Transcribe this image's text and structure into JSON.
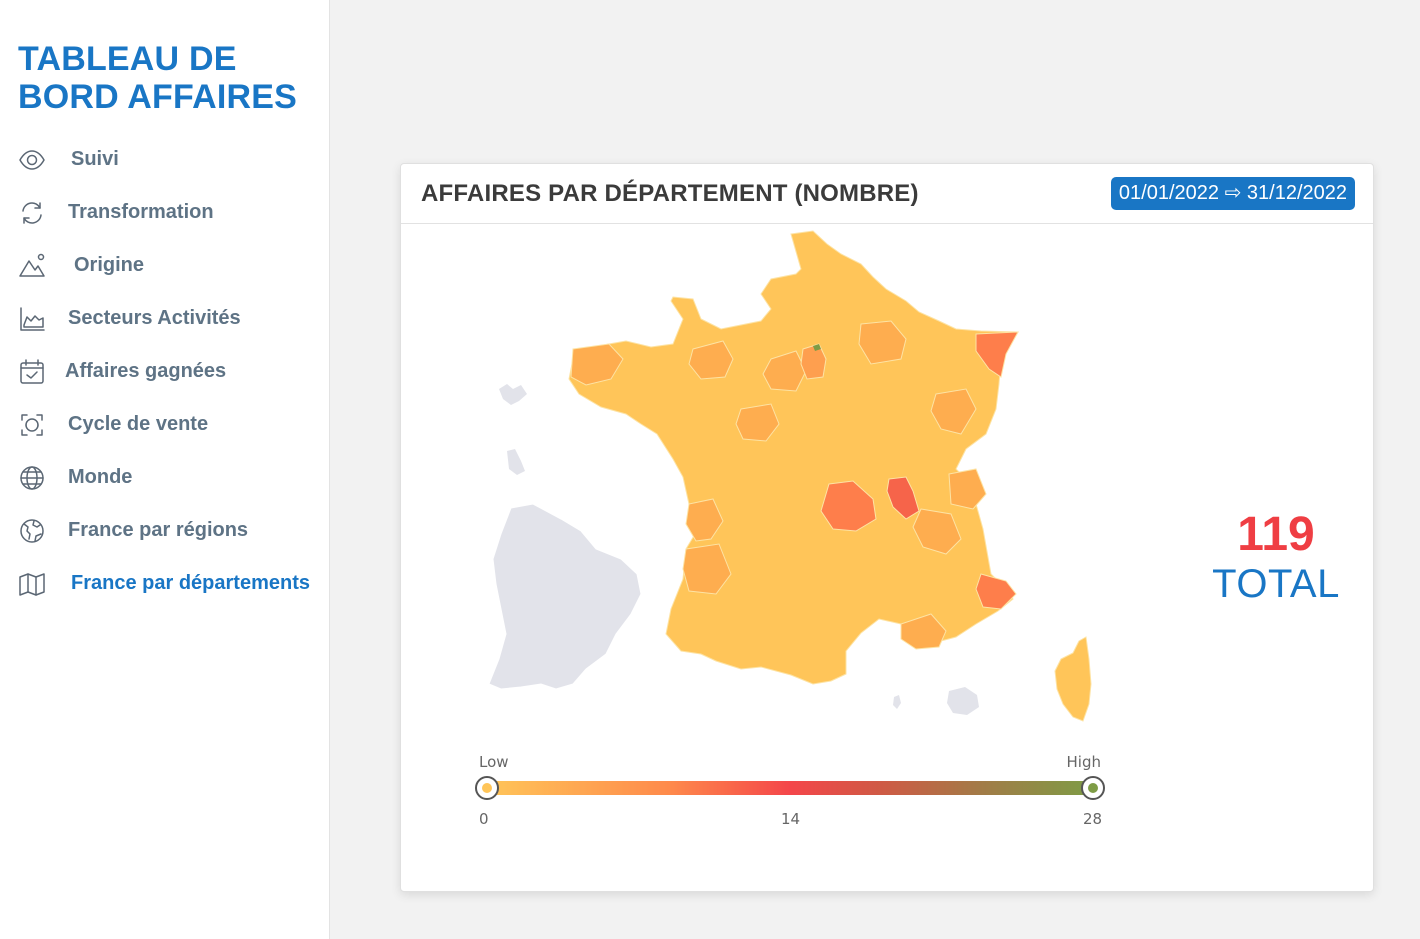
{
  "sidebar": {
    "title_line1": "TABLEAU DE",
    "title_line2": "BORD AFFAIRES",
    "items": [
      {
        "label": "Suivi",
        "icon": "eye-icon"
      },
      {
        "label": "Transformation",
        "icon": "refresh-icon"
      },
      {
        "label": "Origine",
        "icon": "landscape-icon"
      },
      {
        "label": "Secteurs Activités",
        "icon": "area-chart-icon"
      },
      {
        "label": "Affaires gagnées",
        "icon": "calendar-check-icon"
      },
      {
        "label": "Cycle de vente",
        "icon": "cycle-arrows-icon"
      },
      {
        "label": "Monde",
        "icon": "globe-icon"
      },
      {
        "label": "France par régions",
        "icon": "globe-regions-icon"
      },
      {
        "label": "France par départements",
        "icon": "map-icon",
        "active": true
      }
    ]
  },
  "card": {
    "title": "AFFAIRES PAR DÉPARTEMENT (NOMBRE)",
    "date_range": "01/01/2022 ⇨ 31/12/2022"
  },
  "total": {
    "value": "119",
    "label": "TOTAL"
  },
  "legend": {
    "low_label": "Low",
    "high_label": "High",
    "min": "0",
    "mid": "14",
    "max": "28",
    "colors": [
      "#ffc559",
      "#fe8a4b",
      "#f4464a",
      "#cf5a45",
      "#a17c47",
      "#7e9c46"
    ]
  },
  "colors": {
    "accent": "#1976c5",
    "total_value": "#ef3e43",
    "map_base": "#ffc559",
    "map_mid": "#fe9f4f",
    "map_high": "#f6644a",
    "overseas": "#e2e3ea"
  }
}
